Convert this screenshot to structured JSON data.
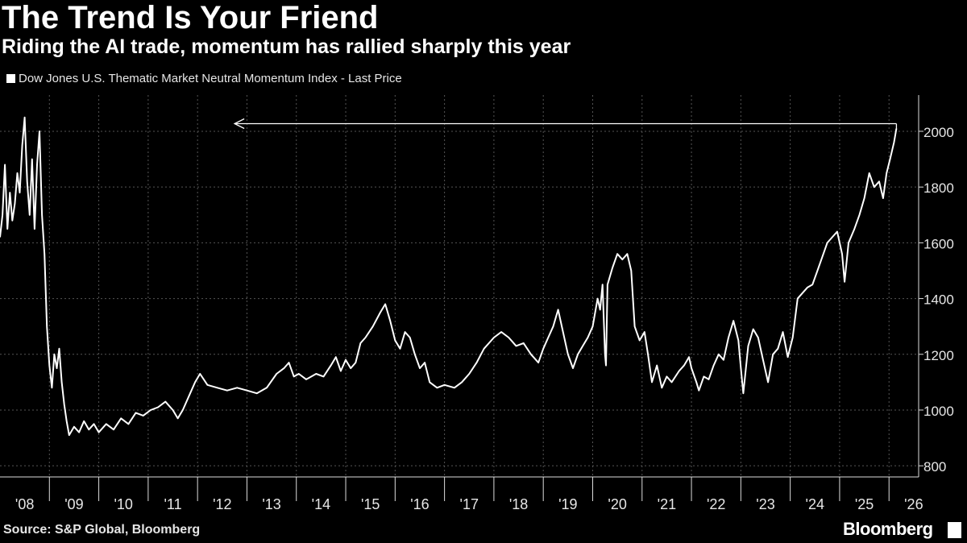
{
  "header": {
    "title": "The Trend Is Your Friend",
    "subtitle": "Riding the AI trade, momentum has rallied sharply this year"
  },
  "footer": {
    "source": "Source: S&P Global, Bloomberg",
    "brand": "Bloomberg"
  },
  "colors": {
    "background": "#000000",
    "line": "#ffffff",
    "grid": "#555555"
  },
  "chart_data": {
    "type": "line",
    "title": "The Trend Is Your Friend",
    "subtitle": "Riding the AI trade, momentum has rallied sharply this year",
    "xlabel": "",
    "ylabel": "",
    "ylim": [
      760,
      2130
    ],
    "xlim": [
      2008.0,
      2026.6
    ],
    "y_ticks": [
      800,
      1000,
      1200,
      1400,
      1600,
      1800,
      2000
    ],
    "x_ticks": [
      "'08",
      "'09",
      "'10",
      "'11",
      "'12",
      "'13",
      "'14",
      "'15",
      "'16",
      "'17",
      "'18",
      "'19",
      "'20",
      "'21",
      "'22",
      "'23",
      "'24",
      "'25",
      "'26"
    ],
    "grid": true,
    "legend_position": "top-left",
    "annotation": "arrow from the latest value pointing back to the 2008 high",
    "series": [
      {
        "name": "Dow Jones U.S. Thematic Market Neutral Momentum Index - Last Price",
        "points": [
          [
            2008.0,
            1620
          ],
          [
            2008.05,
            1700
          ],
          [
            2008.1,
            1880
          ],
          [
            2008.15,
            1650
          ],
          [
            2008.2,
            1780
          ],
          [
            2008.25,
            1680
          ],
          [
            2008.3,
            1740
          ],
          [
            2008.35,
            1850
          ],
          [
            2008.4,
            1780
          ],
          [
            2008.45,
            1950
          ],
          [
            2008.5,
            2050
          ],
          [
            2008.55,
            1820
          ],
          [
            2008.6,
            1700
          ],
          [
            2008.65,
            1900
          ],
          [
            2008.7,
            1650
          ],
          [
            2008.75,
            1880
          ],
          [
            2008.8,
            2000
          ],
          [
            2008.85,
            1700
          ],
          [
            2008.9,
            1560
          ],
          [
            2008.95,
            1300
          ],
          [
            2009.0,
            1160
          ],
          [
            2009.05,
            1080
          ],
          [
            2009.1,
            1200
          ],
          [
            2009.15,
            1150
          ],
          [
            2009.2,
            1220
          ],
          [
            2009.25,
            1100
          ],
          [
            2009.3,
            1020
          ],
          [
            2009.35,
            960
          ],
          [
            2009.4,
            910
          ],
          [
            2009.5,
            940
          ],
          [
            2009.6,
            920
          ],
          [
            2009.7,
            960
          ],
          [
            2009.8,
            930
          ],
          [
            2009.9,
            950
          ],
          [
            2010.0,
            920
          ],
          [
            2010.15,
            950
          ],
          [
            2010.3,
            930
          ],
          [
            2010.45,
            970
          ],
          [
            2010.6,
            950
          ],
          [
            2010.75,
            990
          ],
          [
            2010.9,
            980
          ],
          [
            2011.05,
            1000
          ],
          [
            2011.2,
            1010
          ],
          [
            2011.35,
            1030
          ],
          [
            2011.5,
            1000
          ],
          [
            2011.6,
            970
          ],
          [
            2011.7,
            1000
          ],
          [
            2011.85,
            1060
          ],
          [
            2011.95,
            1100
          ],
          [
            2012.05,
            1130
          ],
          [
            2012.2,
            1090
          ],
          [
            2012.4,
            1080
          ],
          [
            2012.6,
            1070
          ],
          [
            2012.8,
            1080
          ],
          [
            2013.0,
            1070
          ],
          [
            2013.2,
            1060
          ],
          [
            2013.4,
            1080
          ],
          [
            2013.6,
            1130
          ],
          [
            2013.75,
            1150
          ],
          [
            2013.85,
            1170
          ],
          [
            2013.95,
            1120
          ],
          [
            2014.05,
            1130
          ],
          [
            2014.2,
            1110
          ],
          [
            2014.4,
            1130
          ],
          [
            2014.55,
            1120
          ],
          [
            2014.7,
            1160
          ],
          [
            2014.8,
            1190
          ],
          [
            2014.9,
            1140
          ],
          [
            2015.0,
            1180
          ],
          [
            2015.1,
            1150
          ],
          [
            2015.2,
            1170
          ],
          [
            2015.3,
            1240
          ],
          [
            2015.4,
            1260
          ],
          [
            2015.55,
            1300
          ],
          [
            2015.7,
            1350
          ],
          [
            2015.8,
            1380
          ],
          [
            2015.9,
            1320
          ],
          [
            2016.0,
            1250
          ],
          [
            2016.1,
            1220
          ],
          [
            2016.2,
            1280
          ],
          [
            2016.3,
            1260
          ],
          [
            2016.4,
            1200
          ],
          [
            2016.5,
            1150
          ],
          [
            2016.6,
            1170
          ],
          [
            2016.7,
            1100
          ],
          [
            2016.85,
            1080
          ],
          [
            2017.0,
            1090
          ],
          [
            2017.2,
            1080
          ],
          [
            2017.35,
            1100
          ],
          [
            2017.5,
            1130
          ],
          [
            2017.65,
            1170
          ],
          [
            2017.8,
            1220
          ],
          [
            2018.0,
            1260
          ],
          [
            2018.15,
            1280
          ],
          [
            2018.3,
            1260
          ],
          [
            2018.45,
            1230
          ],
          [
            2018.6,
            1240
          ],
          [
            2018.75,
            1200
          ],
          [
            2018.9,
            1170
          ],
          [
            2019.0,
            1220
          ],
          [
            2019.1,
            1260
          ],
          [
            2019.2,
            1300
          ],
          [
            2019.3,
            1360
          ],
          [
            2019.4,
            1280
          ],
          [
            2019.5,
            1200
          ],
          [
            2019.6,
            1150
          ],
          [
            2019.7,
            1200
          ],
          [
            2019.8,
            1230
          ],
          [
            2019.9,
            1260
          ],
          [
            2020.0,
            1300
          ],
          [
            2020.1,
            1400
          ],
          [
            2020.15,
            1360
          ],
          [
            2020.2,
            1450
          ],
          [
            2020.25,
            1200
          ],
          [
            2020.27,
            1160
          ],
          [
            2020.3,
            1450
          ],
          [
            2020.4,
            1510
          ],
          [
            2020.5,
            1560
          ],
          [
            2020.6,
            1540
          ],
          [
            2020.7,
            1560
          ],
          [
            2020.78,
            1500
          ],
          [
            2020.85,
            1300
          ],
          [
            2020.95,
            1250
          ],
          [
            2021.05,
            1280
          ],
          [
            2021.12,
            1200
          ],
          [
            2021.2,
            1100
          ],
          [
            2021.3,
            1160
          ],
          [
            2021.4,
            1080
          ],
          [
            2021.5,
            1120
          ],
          [
            2021.6,
            1100
          ],
          [
            2021.75,
            1140
          ],
          [
            2021.85,
            1160
          ],
          [
            2021.95,
            1190
          ],
          [
            2022.0,
            1150
          ],
          [
            2022.1,
            1100
          ],
          [
            2022.15,
            1070
          ],
          [
            2022.25,
            1120
          ],
          [
            2022.35,
            1110
          ],
          [
            2022.45,
            1160
          ],
          [
            2022.55,
            1200
          ],
          [
            2022.65,
            1180
          ],
          [
            2022.75,
            1260
          ],
          [
            2022.85,
            1320
          ],
          [
            2022.95,
            1250
          ],
          [
            2023.0,
            1150
          ],
          [
            2023.05,
            1060
          ],
          [
            2023.15,
            1230
          ],
          [
            2023.25,
            1290
          ],
          [
            2023.35,
            1260
          ],
          [
            2023.45,
            1180
          ],
          [
            2023.55,
            1100
          ],
          [
            2023.65,
            1200
          ],
          [
            2023.75,
            1220
          ],
          [
            2023.85,
            1280
          ],
          [
            2023.95,
            1190
          ],
          [
            2024.05,
            1260
          ],
          [
            2024.15,
            1400
          ],
          [
            2024.25,
            1420
          ],
          [
            2024.35,
            1440
          ],
          [
            2024.45,
            1450
          ],
          [
            2024.55,
            1500
          ],
          [
            2024.65,
            1550
          ],
          [
            2024.75,
            1600
          ],
          [
            2024.85,
            1620
          ],
          [
            2024.95,
            1640
          ],
          [
            2025.05,
            1560
          ],
          [
            2025.1,
            1460
          ],
          [
            2025.18,
            1600
          ],
          [
            2025.3,
            1650
          ],
          [
            2025.4,
            1700
          ],
          [
            2025.5,
            1760
          ],
          [
            2025.6,
            1850
          ],
          [
            2025.7,
            1800
          ],
          [
            2025.8,
            1820
          ],
          [
            2025.88,
            1760
          ],
          [
            2025.95,
            1850
          ],
          [
            2026.02,
            1900
          ],
          [
            2026.1,
            1960
          ],
          [
            2026.15,
            2010
          ]
        ]
      }
    ]
  }
}
